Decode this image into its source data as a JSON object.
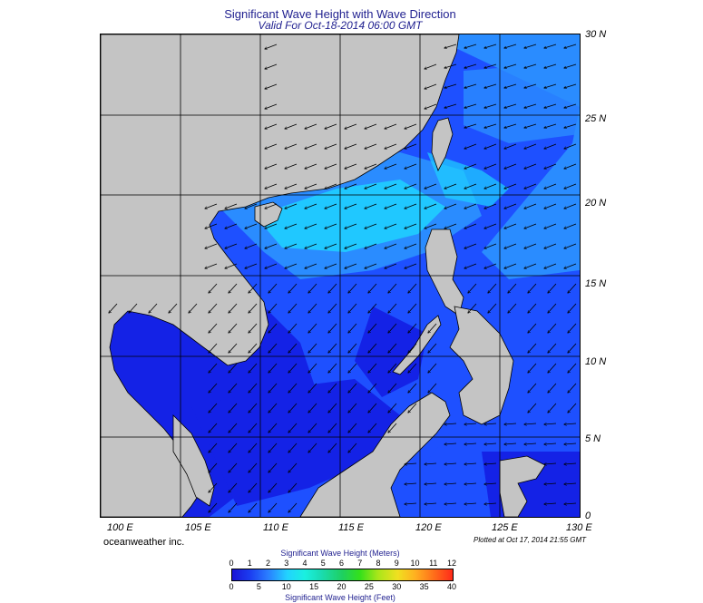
{
  "title": "Significant Wave Height with Wave Direction",
  "subtitle": "Valid For Oct-18-2014 06:00 GMT",
  "lat_labels": [
    "30 N",
    "25 N",
    "20 N",
    "15 N",
    "10 N",
    "5 N",
    "0"
  ],
  "lon_labels": [
    "100 E",
    "105 E",
    "110 E",
    "115 E",
    "120 E",
    "125 E",
    "130 E"
  ],
  "brand": "oceanweather inc.",
  "plotted": "Plotted at Oct 17, 2014 21:55 GMT",
  "colorbar": {
    "title_meters": "Significant Wave Height (Meters)",
    "title_feet": "Significant Wave Height (Feet)",
    "meters_ticks": [
      "0",
      "1",
      "2",
      "3",
      "4",
      "5",
      "6",
      "7",
      "8",
      "9",
      "10",
      "11",
      "12"
    ],
    "feet_ticks": [
      "0",
      "5",
      "10",
      "15",
      "20",
      "25",
      "30",
      "35",
      "40"
    ]
  },
  "colors": {
    "land": "#c4c4c4",
    "deep_blue": "#1422e6",
    "mid_blue": "#1e50ff",
    "light_blue": "#2a8cff",
    "cyan": "#1ed2ff",
    "dark_navy": "#0a0a3c",
    "grid": "#000000"
  }
}
